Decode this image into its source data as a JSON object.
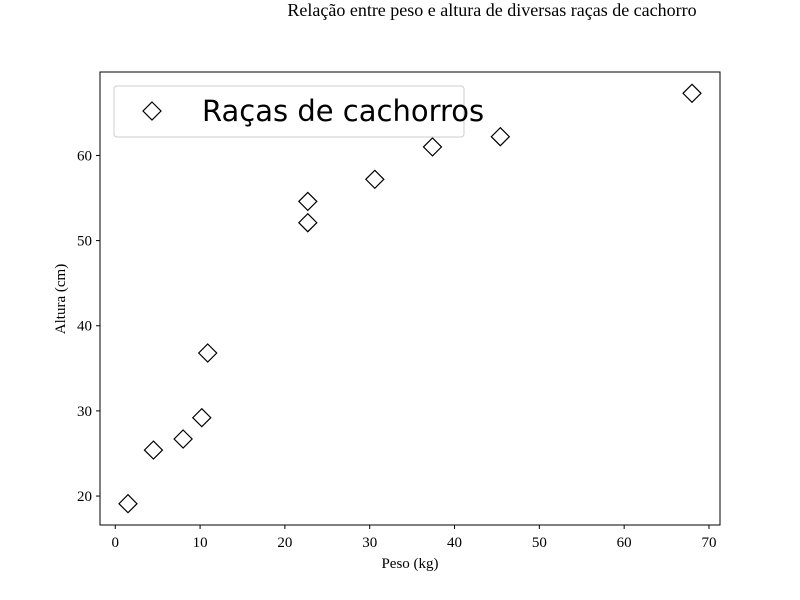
{
  "chart_data": {
    "type": "scatter",
    "title": "Relação entre peso e altura de diversas raças de cachorro",
    "xlabel": "Peso (kg)",
    "ylabel": "Altura (cm)",
    "xlim": [
      -1.8,
      71.3
    ],
    "ylim": [
      16.6,
      69.8
    ],
    "xticks": [
      0,
      10,
      20,
      30,
      40,
      50,
      60,
      70
    ],
    "yticks": [
      20,
      30,
      40,
      50,
      60
    ],
    "grid": false,
    "legend_position": "top-left",
    "marker": "diamond",
    "marker_fill": "#ffffff",
    "marker_edge": "#000000",
    "series": [
      {
        "name": "Raças de cachorros",
        "points": [
          {
            "x": 1.5,
            "y": 19.1
          },
          {
            "x": 4.5,
            "y": 25.4
          },
          {
            "x": 8.0,
            "y": 26.7
          },
          {
            "x": 10.2,
            "y": 29.2
          },
          {
            "x": 10.9,
            "y": 36.8
          },
          {
            "x": 22.7,
            "y": 52.1
          },
          {
            "x": 22.7,
            "y": 54.6
          },
          {
            "x": 30.6,
            "y": 57.2
          },
          {
            "x": 37.4,
            "y": 61.0
          },
          {
            "x": 45.4,
            "y": 62.2
          },
          {
            "x": 68.0,
            "y": 67.3
          }
        ]
      }
    ]
  }
}
